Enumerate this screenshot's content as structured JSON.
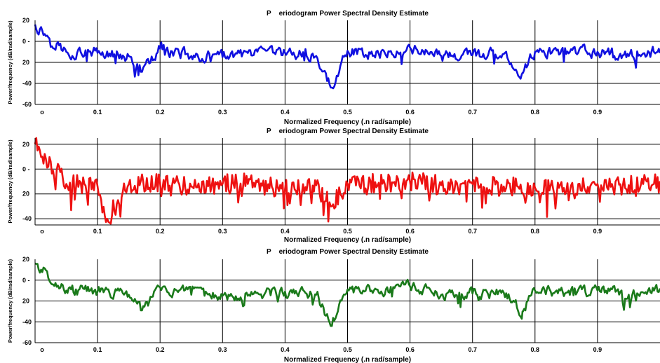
{
  "chart_data": [
    {
      "type": "line",
      "title": "P    eriodogram Power Spectral Density Estimate",
      "xlabel": "Normalized Frequency (.n rad/sample)",
      "ylabel": "Power/frequency (dB/rad/sample)",
      "xlim": [
        0,
        1
      ],
      "ylim": [
        -60,
        20
      ],
      "xticks": [
        0,
        0.1,
        0.2,
        0.3,
        0.4,
        0.5,
        0.6,
        0.7,
        0.8,
        0.9
      ],
      "xtick_labels": [
        "o",
        "0.1",
        "0.2",
        "0.3",
        "0.4",
        "0.5",
        "0.6",
        "0.7",
        "0.8",
        "0.9"
      ],
      "yticks": [
        20,
        0,
        -20,
        -40,
        -60
      ],
      "ytick_labels": [
        "20",
        "0 -",
        "20",
        "-40",
        "-60"
      ],
      "grid": true,
      "color": "#1010e0",
      "series": [
        {
          "x": [
            0,
            0.05,
            0.1,
            0.15,
            0.17,
            0.2,
            0.25,
            0.3,
            0.35,
            0.4,
            0.45,
            0.474,
            0.5,
            0.55,
            0.6,
            0.65,
            0.7,
            0.75,
            0.78,
            0.8,
            0.85,
            0.9,
            0.95,
            0.99
          ],
          "y": [
            16,
            -10,
            -11,
            -14,
            -29,
            -7,
            -14,
            -15,
            -13,
            -11,
            -14,
            -44,
            -9,
            -12,
            -6,
            -14,
            -13,
            -12,
            -30,
            -10,
            -12,
            -10,
            -14,
            -10
          ]
        }
      ]
    },
    {
      "type": "line",
      "title": "P    eriodogram Power Spectral Density Estimate",
      "xlabel": "Normalized Frequency (.n rad/sample)",
      "ylabel": "Power/frequency (dB/rad/sample)",
      "xlim": [
        0,
        1
      ],
      "ylim": [
        -45,
        25
      ],
      "xticks": [
        0,
        0.1,
        0.2,
        0.3,
        0.4,
        0.5,
        0.6,
        0.7,
        0.8,
        0.9
      ],
      "xtick_labels": [
        "o",
        "0.1",
        "0.2",
        "0.3",
        "0.4",
        "0.5",
        "0.6",
        "0.7",
        "0.8",
        "0.9"
      ],
      "yticks": [
        20,
        0,
        -20,
        -40
      ],
      "ytick_labels": [
        "20",
        "0 -",
        "20",
        "-40"
      ],
      "grid": true,
      "color": "#ee1111",
      "series": [
        {
          "x": [
            0,
            0.05,
            0.1,
            0.115,
            0.15,
            0.2,
            0.25,
            0.3,
            0.35,
            0.4,
            0.45,
            0.474,
            0.5,
            0.55,
            0.6,
            0.65,
            0.7,
            0.75,
            0.8,
            0.85,
            0.9,
            0.95,
            0.99
          ],
          "y": [
            20,
            -12,
            -14,
            -40,
            -12,
            -11,
            -14,
            -12,
            -11,
            -16,
            -13,
            -30,
            -12,
            -11,
            -10,
            -13,
            -12,
            -14,
            -15,
            -18,
            -12,
            -13,
            -12
          ]
        }
      ]
    },
    {
      "type": "line",
      "title": "P    eriodogram Power Spectral Density Estimate",
      "xlabel": "Normalized Frequency (.n rad/sample)",
      "ylabel": "Power/frequency (dB/rad/sample)",
      "xlim": [
        0,
        1
      ],
      "ylim": [
        -60,
        20
      ],
      "xticks": [
        0,
        0.1,
        0.2,
        0.3,
        0.4,
        0.5,
        0.6,
        0.7,
        0.8,
        0.9
      ],
      "xtick_labels": [
        "o",
        "0.1",
        "0.2",
        "0.3",
        "0.4",
        "0.5",
        "0.6",
        "0.7",
        "0.8",
        "0.9"
      ],
      "yticks": [
        20,
        0,
        -20,
        -40,
        -60
      ],
      "ytick_labels": [
        "20",
        "0 -",
        "20",
        "-40",
        "-60"
      ],
      "grid": true,
      "color": "#1a7a1a",
      "series": [
        {
          "x": [
            0,
            0.05,
            0.1,
            0.15,
            0.17,
            0.2,
            0.25,
            0.3,
            0.35,
            0.4,
            0.45,
            0.474,
            0.5,
            0.55,
            0.6,
            0.65,
            0.7,
            0.75,
            0.78,
            0.8,
            0.85,
            0.9,
            0.95,
            0.99
          ],
          "y": [
            16,
            -10,
            -11,
            -14,
            -29,
            -7,
            -14,
            -15,
            -13,
            -11,
            -14,
            -44,
            -9,
            -12,
            -6,
            -14,
            -13,
            -12,
            -30,
            -10,
            -12,
            -10,
            -14,
            -10
          ]
        }
      ]
    }
  ]
}
